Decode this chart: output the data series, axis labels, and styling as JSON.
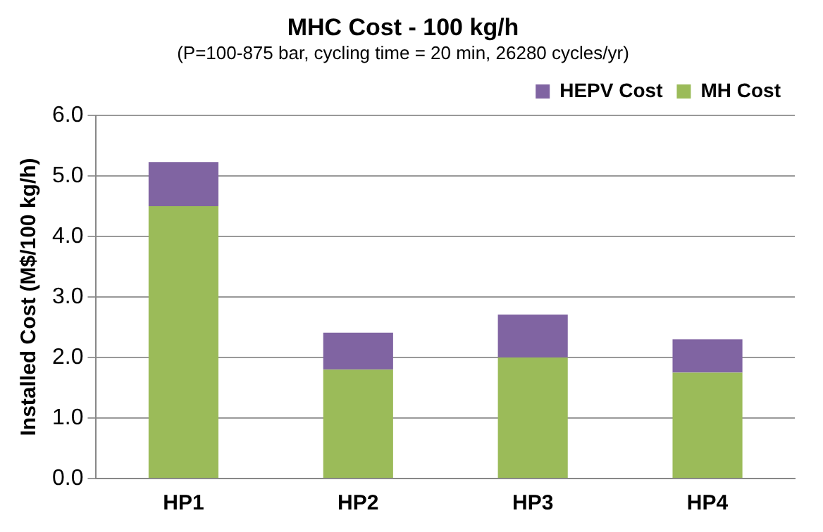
{
  "chart_data": {
    "type": "bar",
    "title": "MHC Cost - 100 kg/h",
    "subtitle": "(P=100-875 bar, cycling time = 20 min, 26280 cycles/yr)",
    "ylabel": "Installed Cost (M$/100 kg/h)",
    "categories": [
      "HP1",
      "HP2",
      "HP3",
      "HP4"
    ],
    "series": [
      {
        "name": "MH Cost",
        "color": "#9bbb59",
        "values": [
          4.5,
          1.8,
          2.0,
          1.75
        ]
      },
      {
        "name": "HEPV Cost",
        "color": "#8064a2",
        "values": [
          0.73,
          0.61,
          0.71,
          0.55
        ]
      }
    ],
    "stacked": true,
    "ylim": [
      0,
      6
    ],
    "yticks": [
      {
        "value": 0,
        "label": "0.0"
      },
      {
        "value": 1,
        "label": "1.0"
      },
      {
        "value": 2,
        "label": "2.0"
      },
      {
        "value": 3,
        "label": "3.0"
      },
      {
        "value": 4,
        "label": "4.0"
      },
      {
        "value": 5,
        "label": "5.0"
      },
      {
        "value": 6,
        "label": "6.0"
      }
    ],
    "grid": "y",
    "legend": "top right"
  }
}
